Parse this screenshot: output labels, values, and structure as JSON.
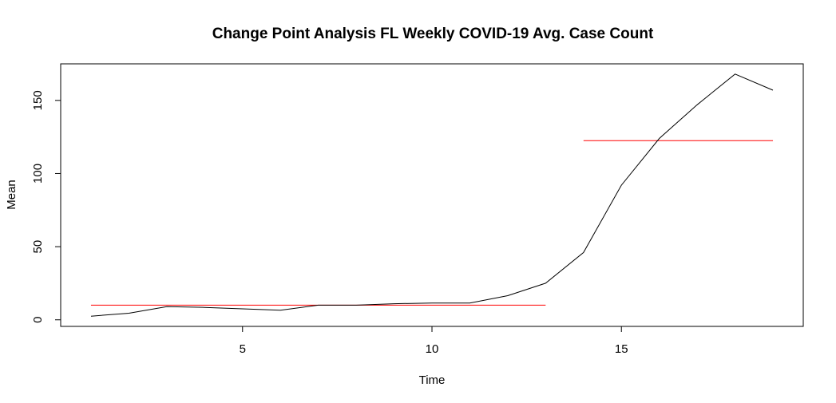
{
  "chart_data": {
    "type": "line",
    "title": "Change Point Analysis FL Weekly COVID-19 Avg. Case Count",
    "xlabel": "Time",
    "ylabel": "Mean",
    "xlim": [
      0.2,
      19.8
    ],
    "ylim": [
      -4.5,
      175
    ],
    "x_ticks": [
      5,
      10,
      15
    ],
    "y_ticks": [
      0,
      50,
      100,
      150
    ],
    "x_tick_labels": [
      "5",
      "10",
      "15"
    ],
    "y_tick_labels": [
      "0",
      "50",
      "100",
      "150"
    ],
    "grid": false,
    "series": [
      {
        "color": "#000000",
        "x": [
          1,
          2,
          3,
          4,
          5,
          6,
          7,
          8,
          9,
          10,
          11,
          12,
          13,
          14,
          15,
          16,
          17,
          18,
          19
        ],
        "y": [
          2.5,
          4.5,
          9,
          8.5,
          7.5,
          6.5,
          10,
          10,
          11,
          11.5,
          11.5,
          16.5,
          25,
          46,
          92,
          124,
          147,
          168,
          157
        ]
      }
    ],
    "segments": [
      {
        "color": "#ff0000",
        "x0": 1,
        "x1": 13,
        "y": 10
      },
      {
        "color": "#ff0000",
        "x0": 14,
        "x1": 19,
        "y": 122.5
      }
    ]
  }
}
